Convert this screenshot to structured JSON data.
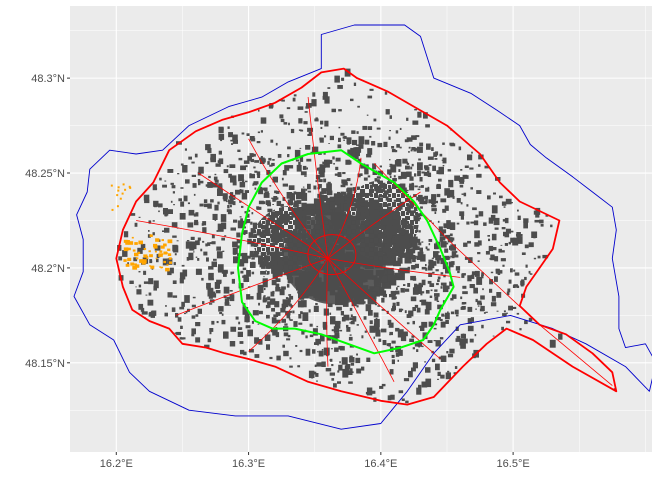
{
  "chart_data": {
    "type": "map",
    "title": "",
    "xlabel": "",
    "ylabel": "",
    "xlim": [
      16.165,
      16.605
    ],
    "ylim": [
      48.103,
      48.338
    ],
    "grid": true,
    "x_ticks": [
      {
        "value": 16.2,
        "label": "16.2°E"
      },
      {
        "value": 16.3,
        "label": "16.3°E"
      },
      {
        "value": 16.4,
        "label": "16.4°E"
      },
      {
        "value": 16.5,
        "label": "16.5°E"
      }
    ],
    "y_ticks": [
      {
        "value": 48.15,
        "label": "48.15°N"
      },
      {
        "value": 48.2,
        "label": "48.2°N"
      },
      {
        "value": 48.25,
        "label": "48.25°N"
      },
      {
        "value": 48.3,
        "label": "48.3°N"
      }
    ],
    "colors": {
      "panel": "#ebebeb",
      "grid_major": "#ffffff",
      "buildings": "#4d4d4d",
      "outer_boundary": "#0000cd",
      "city_boundary": "#ff0000",
      "inner_ring": "#00ff00",
      "orange_patches": "#ffa500"
    },
    "layers": [
      {
        "name": "outer-boundary",
        "kind": "polygon",
        "color": "#0000cd",
        "coords": [
          [
            16.355,
            48.323
          ],
          [
            16.38,
            48.328
          ],
          [
            16.418,
            48.328
          ],
          [
            16.43,
            48.322
          ],
          [
            16.44,
            48.3
          ],
          [
            16.468,
            48.292
          ],
          [
            16.488,
            48.283
          ],
          [
            16.505,
            48.275
          ],
          [
            16.513,
            48.265
          ],
          [
            16.525,
            48.258
          ],
          [
            16.545,
            48.248
          ],
          [
            16.56,
            48.24
          ],
          [
            16.575,
            48.232
          ],
          [
            16.578,
            48.22
          ],
          [
            16.575,
            48.205
          ],
          [
            16.58,
            48.185
          ],
          [
            16.58,
            48.168
          ],
          [
            16.585,
            48.158
          ],
          [
            16.6,
            48.16
          ],
          [
            16.608,
            48.15
          ],
          [
            16.603,
            48.135
          ],
          [
            16.585,
            48.148
          ],
          [
            16.555,
            48.16
          ],
          [
            16.53,
            48.168
          ],
          [
            16.498,
            48.175
          ],
          [
            16.46,
            48.17
          ],
          [
            16.44,
            48.155
          ],
          [
            16.42,
            48.135
          ],
          [
            16.4,
            48.118
          ],
          [
            16.37,
            48.115
          ],
          [
            16.33,
            48.122
          ],
          [
            16.29,
            48.122
          ],
          [
            16.255,
            48.125
          ],
          [
            16.225,
            48.135
          ],
          [
            16.21,
            48.145
          ],
          [
            16.198,
            48.162
          ],
          [
            16.18,
            48.17
          ],
          [
            16.168,
            48.185
          ],
          [
            16.175,
            48.198
          ],
          [
            16.175,
            48.215
          ],
          [
            16.17,
            48.228
          ],
          [
            16.178,
            48.24
          ],
          [
            16.18,
            48.252
          ],
          [
            16.195,
            48.262
          ],
          [
            16.215,
            48.26
          ],
          [
            16.235,
            48.262
          ],
          [
            16.255,
            48.275
          ],
          [
            16.285,
            48.285
          ],
          [
            16.31,
            48.29
          ],
          [
            16.33,
            48.298
          ],
          [
            16.355,
            48.305
          ],
          [
            16.355,
            48.323
          ]
        ]
      },
      {
        "name": "city-boundary",
        "kind": "polygon",
        "color": "#ff0000",
        "coords": [
          [
            16.355,
            48.303
          ],
          [
            16.372,
            48.305
          ],
          [
            16.382,
            48.3
          ],
          [
            16.405,
            48.293
          ],
          [
            16.425,
            48.285
          ],
          [
            16.45,
            48.275
          ],
          [
            16.475,
            48.26
          ],
          [
            16.49,
            48.245
          ],
          [
            16.505,
            48.235
          ],
          [
            16.52,
            48.23
          ],
          [
            16.535,
            48.225
          ],
          [
            16.53,
            48.21
          ],
          [
            16.52,
            48.2
          ],
          [
            16.51,
            48.19
          ],
          [
            16.505,
            48.18
          ],
          [
            16.52,
            48.17
          ],
          [
            16.54,
            48.165
          ],
          [
            16.56,
            48.155
          ],
          [
            16.575,
            48.145
          ],
          [
            16.578,
            48.135
          ],
          [
            16.545,
            48.148
          ],
          [
            16.515,
            48.162
          ],
          [
            16.495,
            48.168
          ],
          [
            16.48,
            48.16
          ],
          [
            16.462,
            48.148
          ],
          [
            16.44,
            48.132
          ],
          [
            16.42,
            48.128
          ],
          [
            16.4,
            48.13
          ],
          [
            16.37,
            48.135
          ],
          [
            16.345,
            48.14
          ],
          [
            16.32,
            48.148
          ],
          [
            16.3,
            48.152
          ],
          [
            16.282,
            48.155
          ],
          [
            16.268,
            48.158
          ],
          [
            16.25,
            48.16
          ],
          [
            16.24,
            48.168
          ],
          [
            16.225,
            48.172
          ],
          [
            16.212,
            48.178
          ],
          [
            16.205,
            48.19
          ],
          [
            16.2,
            48.205
          ],
          [
            16.205,
            48.22
          ],
          [
            16.215,
            48.235
          ],
          [
            16.228,
            48.245
          ],
          [
            16.24,
            48.262
          ],
          [
            16.26,
            48.272
          ],
          [
            16.28,
            48.278
          ],
          [
            16.3,
            48.282
          ],
          [
            16.32,
            48.287
          ],
          [
            16.34,
            48.295
          ],
          [
            16.355,
            48.303
          ]
        ]
      },
      {
        "name": "inner-ring",
        "kind": "polygon",
        "color": "#00ff00",
        "coords": [
          [
            16.37,
            48.262
          ],
          [
            16.385,
            48.255
          ],
          [
            16.41,
            48.245
          ],
          [
            16.425,
            48.235
          ],
          [
            16.435,
            48.225
          ],
          [
            16.445,
            48.21
          ],
          [
            16.452,
            48.198
          ],
          [
            16.455,
            48.19
          ],
          [
            16.445,
            48.178
          ],
          [
            16.44,
            48.17
          ],
          [
            16.432,
            48.162
          ],
          [
            16.415,
            48.158
          ],
          [
            16.395,
            48.155
          ],
          [
            16.375,
            48.16
          ],
          [
            16.355,
            48.165
          ],
          [
            16.335,
            48.168
          ],
          [
            16.318,
            48.168
          ],
          [
            16.305,
            48.172
          ],
          [
            16.295,
            48.182
          ],
          [
            16.292,
            48.2
          ],
          [
            16.295,
            48.218
          ],
          [
            16.3,
            48.232
          ],
          [
            16.31,
            48.245
          ],
          [
            16.325,
            48.255
          ],
          [
            16.345,
            48.26
          ],
          [
            16.37,
            48.262
          ]
        ]
      }
    ]
  }
}
